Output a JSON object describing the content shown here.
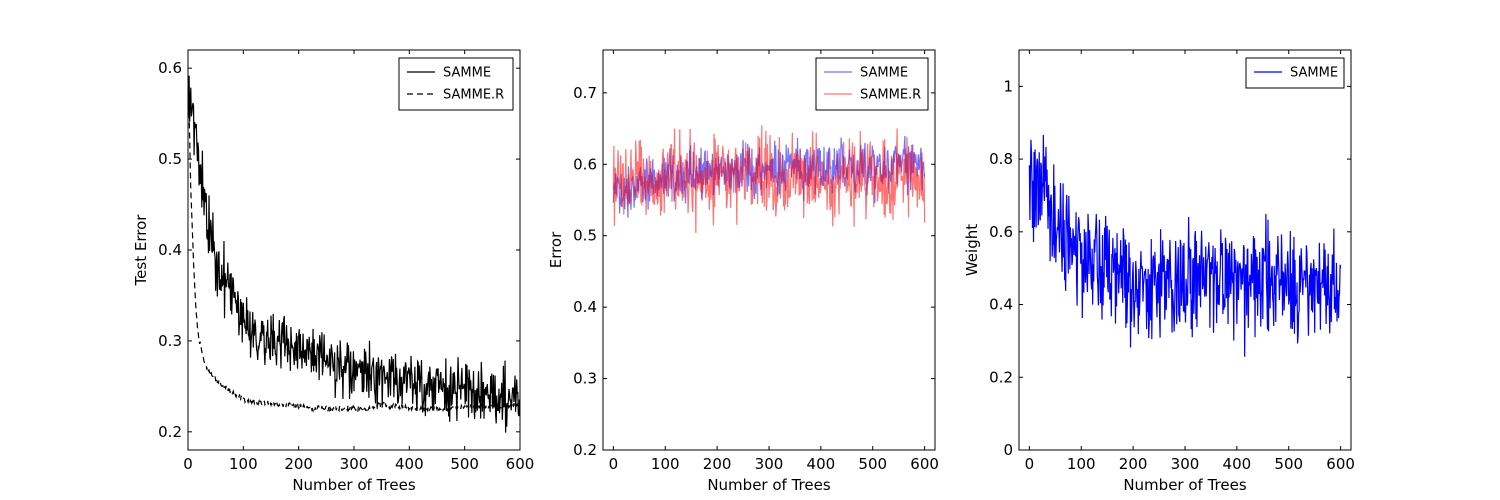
{
  "chart_data": [
    {
      "type": "line",
      "xlabel": "Number of Trees",
      "ylabel": "Test Error",
      "xlim": [
        0,
        600
      ],
      "ylim": [
        0.18,
        0.62
      ],
      "xticks": [
        0,
        100,
        200,
        300,
        400,
        500,
        600
      ],
      "yticks": [
        0.2,
        0.3,
        0.4,
        0.5,
        0.6
      ],
      "grid": false,
      "legend": "top-right",
      "series": [
        {
          "name": "SAMME",
          "style": "solid",
          "color": "#000000",
          "x": [
            1,
            5,
            10,
            15,
            20,
            25,
            30,
            35,
            40,
            45,
            50,
            60,
            70,
            80,
            90,
            100,
            110,
            120,
            130,
            140,
            150,
            170,
            200,
            220,
            250,
            270,
            300,
            330,
            350,
            380,
            400,
            430,
            450,
            470,
            500,
            530,
            550,
            570,
            600
          ],
          "y": [
            0.58,
            0.57,
            0.55,
            0.52,
            0.49,
            0.47,
            0.45,
            0.43,
            0.42,
            0.41,
            0.39,
            0.37,
            0.36,
            0.35,
            0.34,
            0.33,
            0.32,
            0.31,
            0.305,
            0.305,
            0.3,
            0.3,
            0.29,
            0.285,
            0.275,
            0.27,
            0.265,
            0.262,
            0.26,
            0.257,
            0.255,
            0.252,
            0.25,
            0.247,
            0.245,
            0.242,
            0.24,
            0.238,
            0.237
          ],
          "noise": 0.016
        },
        {
          "name": "SAMME.R",
          "style": "dashed",
          "color": "#000000",
          "x": [
            1,
            3,
            5,
            8,
            10,
            13,
            15,
            18,
            20,
            25,
            30,
            40,
            50,
            60,
            70,
            80,
            90,
            100,
            120,
            150,
            170,
            200,
            220,
            250,
            300,
            330,
            350,
            370,
            400,
            450,
            500,
            550,
            600
          ],
          "y": [
            0.58,
            0.52,
            0.47,
            0.42,
            0.385,
            0.35,
            0.33,
            0.31,
            0.3,
            0.29,
            0.275,
            0.265,
            0.258,
            0.252,
            0.248,
            0.243,
            0.24,
            0.236,
            0.233,
            0.23,
            0.23,
            0.228,
            0.226,
            0.226,
            0.225,
            0.226,
            0.231,
            0.228,
            0.226,
            0.225,
            0.227,
            0.228,
            0.229
          ],
          "noise": 0.0015
        }
      ]
    },
    {
      "type": "line",
      "xlabel": "Number of Trees",
      "ylabel": "Error",
      "xlim": [
        -20,
        620
      ],
      "ylim": [
        0.2,
        0.76
      ],
      "xticks": [
        0,
        100,
        200,
        300,
        400,
        500,
        600
      ],
      "yticks": [
        0.2,
        0.3,
        0.4,
        0.5,
        0.6,
        0.7
      ],
      "grid": false,
      "legend": "top-right",
      "series": [
        {
          "name": "SAMME",
          "style": "solid",
          "color": "#0000ff",
          "x": [
            0,
            20,
            50,
            100,
            200,
            300,
            400,
            500,
            600
          ],
          "y": [
            0.56,
            0.565,
            0.575,
            0.585,
            0.59,
            0.595,
            0.595,
            0.597,
            0.598
          ],
          "noise": 0.018
        },
        {
          "name": "SAMME.R",
          "style": "solid",
          "color": "#ff0000",
          "x": [
            0,
            50,
            100,
            200,
            300,
            400,
            500,
            600
          ],
          "y": [
            0.575,
            0.58,
            0.582,
            0.585,
            0.585,
            0.585,
            0.585,
            0.585
          ],
          "noise": 0.028
        }
      ]
    },
    {
      "type": "line",
      "xlabel": "Number of Trees",
      "ylabel": "Weight",
      "xlim": [
        -20,
        620
      ],
      "ylim": [
        0.0,
        1.1
      ],
      "xticks": [
        0,
        100,
        200,
        300,
        400,
        500,
        600
      ],
      "yticks": [
        0.0,
        0.2,
        0.4,
        0.6,
        0.8,
        1.0
      ],
      "grid": false,
      "legend": "top-right",
      "series": [
        {
          "name": "SAMME",
          "style": "solid",
          "color": "#0000ff",
          "x": [
            0,
            10,
            20,
            40,
            60,
            80,
            100,
            150,
            200,
            300,
            400,
            500,
            600
          ],
          "y": [
            0.72,
            0.71,
            0.69,
            0.64,
            0.6,
            0.56,
            0.53,
            0.5,
            0.47,
            0.46,
            0.46,
            0.45,
            0.45
          ],
          "noise": 0.075
        }
      ]
    }
  ]
}
